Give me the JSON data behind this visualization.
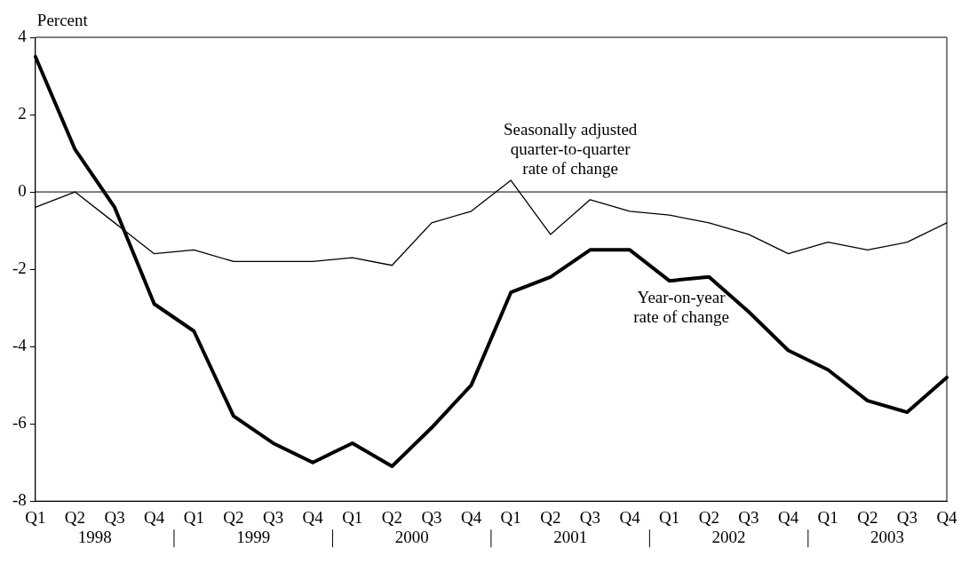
{
  "chart_data": {
    "type": "line",
    "ylabel": "Percent",
    "categories": [
      "Q1",
      "Q2",
      "Q3",
      "Q4",
      "Q1",
      "Q2",
      "Q3",
      "Q4",
      "Q1",
      "Q2",
      "Q3",
      "Q4",
      "Q1",
      "Q2",
      "Q3",
      "Q4",
      "Q1",
      "Q2",
      "Q3",
      "Q4",
      "Q1",
      "Q2",
      "Q3",
      "Q4"
    ],
    "series": [
      {
        "name": "Seasonally adjusted quarter-to-quarter rate of change",
        "color": "#000000",
        "values": [
          -0.4,
          0.0,
          -0.8,
          -1.6,
          -1.5,
          -1.8,
          -1.8,
          -1.8,
          -1.7,
          -1.9,
          -0.8,
          -0.5,
          0.3,
          -1.1,
          -0.2,
          -0.5,
          -0.6,
          -0.8,
          -1.1,
          -1.6,
          -1.3,
          -1.5,
          -1.3,
          -0.8
        ]
      },
      {
        "name": "Year-on-year rate of change",
        "color": "#000000",
        "values": [
          3.5,
          1.1,
          -0.4,
          -2.9,
          -3.6,
          -5.8,
          -6.5,
          -7.0,
          -6.5,
          -7.1,
          -6.1,
          -5.0,
          -2.6,
          -2.2,
          -1.5,
          -1.5,
          -2.3,
          -2.2,
          -3.1,
          -4.1,
          -4.6,
          -5.4,
          -5.7,
          -4.8
        ]
      }
    ],
    "ylim": [
      -8,
      4
    ],
    "yticks": [
      -8,
      -6,
      -4,
      -2,
      0,
      2,
      4
    ],
    "ref_lines": [
      {
        "axis": "y",
        "value": 0,
        "color": "#000000"
      }
    ],
    "annotations": [
      "1998",
      "1999",
      "2000",
      "2001",
      "2002",
      "2003"
    ],
    "grid": false,
    "legend": false,
    "marker": "none",
    "line_style": "solid"
  }
}
